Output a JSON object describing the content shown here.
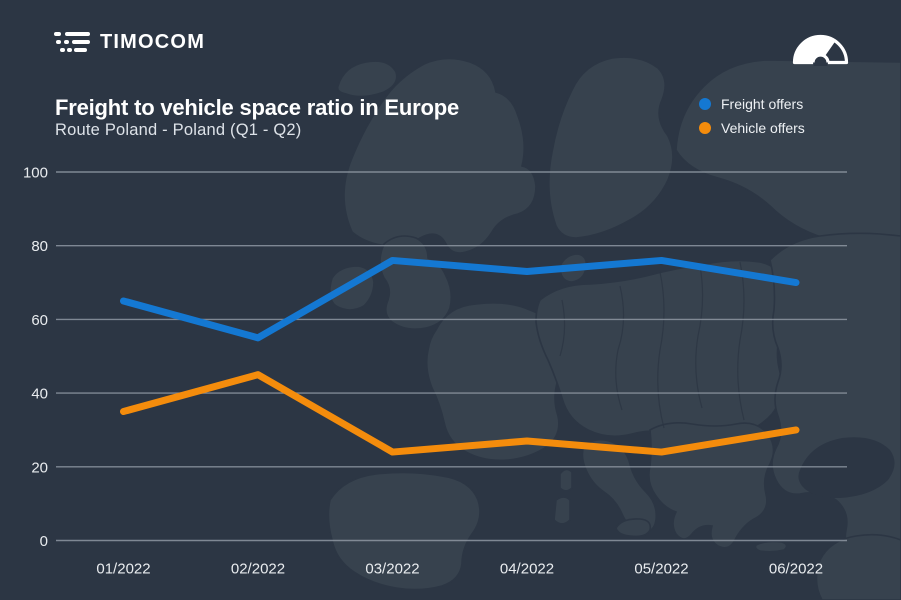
{
  "brand": {
    "name": "TIMOCOM",
    "logo_icon": "timocom-lanes-icon"
  },
  "header": {
    "title": "Freight to vehicle space ratio in Europe",
    "subtitle": "Route Poland - Poland (Q1 - Q2)"
  },
  "icons": {
    "top_right": "barometer-gauge-icon"
  },
  "colors": {
    "background": "#2c3644",
    "map_land": "#37424e",
    "freight_blue": "#1478d2",
    "vehicle_orange": "#f48c0c",
    "gridline": "#8e97a2",
    "text": "#ffffff"
  },
  "chart_data": {
    "type": "line",
    "title": "Freight to vehicle space ratio in Europe",
    "subtitle": "Route Poland - Poland (Q1 - Q2)",
    "categories": [
      "01/2022",
      "02/2022",
      "03/2022",
      "04/2022",
      "05/2022",
      "06/2022"
    ],
    "series": [
      {
        "name": "Freight offers",
        "color": "#1478d2",
        "values": [
          65,
          55,
          76,
          73,
          76,
          70
        ]
      },
      {
        "name": "Vehicle offers",
        "color": "#f48c0c",
        "values": [
          35,
          45,
          24,
          27,
          24,
          30
        ]
      }
    ],
    "xlabel": "",
    "ylabel": "",
    "ylim": [
      0,
      100
    ],
    "yticks": [
      0,
      20,
      40,
      60,
      80,
      100
    ],
    "grid": true,
    "legend_position": "top-right"
  }
}
